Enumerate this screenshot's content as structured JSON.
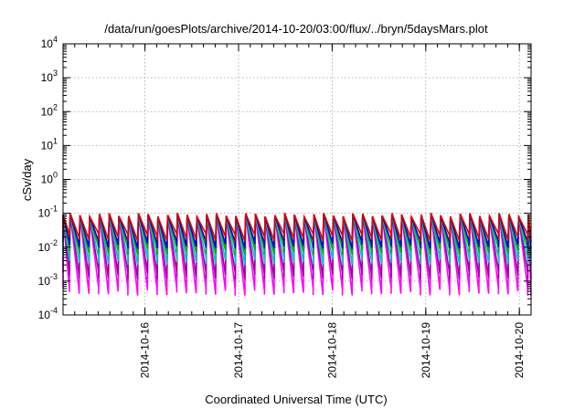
{
  "chart_data": {
    "type": "line",
    "title": "/data/run/goesPlots/archive/2014-10-20/03:00/flux/../bryn/5daysMars.plot",
    "xlabel": "Coordinated Universal Time (UTC)",
    "ylabel": "cSv/day",
    "y_scale": "log",
    "ylim": [
      0.0001,
      10000
    ],
    "y_ticks": [
      {
        "base": "10",
        "exp": "-4",
        "value": 0.0001
      },
      {
        "base": "10",
        "exp": "-3",
        "value": 0.001
      },
      {
        "base": "10",
        "exp": "-2",
        "value": 0.01
      },
      {
        "base": "10",
        "exp": "-1",
        "value": 0.1
      },
      {
        "base": "10",
        "exp": "0",
        "value": 1
      },
      {
        "base": "10",
        "exp": "1",
        "value": 10
      },
      {
        "base": "10",
        "exp": "2",
        "value": 100
      },
      {
        "base": "10",
        "exp": "3",
        "value": 1000
      },
      {
        "base": "10",
        "exp": "4",
        "value": 10000
      }
    ],
    "xlim": [
      "2014-10-15 03:00",
      "2014-10-20 03:00"
    ],
    "x_ticks": [
      "2014-10-16",
      "2014-10-17",
      "2014-10-18",
      "2014-10-19",
      "2014-10-20"
    ],
    "grid": true,
    "pattern": {
      "description_of_data": "sawtooth cycles",
      "cycles_per_day": 9.6,
      "peak_level": 0.09,
      "series": [
        {
          "color": "#e00000",
          "min": 0.02
        },
        {
          "color": "#0000e0",
          "min": 0.012
        },
        {
          "color": "#00b000",
          "min": 0.008
        },
        {
          "color": "#00c8c8",
          "min": 0.004
        },
        {
          "color": "#a000a0",
          "min": 0.0015
        },
        {
          "color": "#ff00ff",
          "min": 0.0005
        }
      ]
    }
  }
}
